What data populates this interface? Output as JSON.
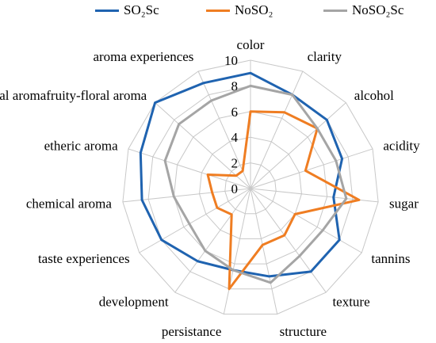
{
  "chart_data": {
    "type": "radar",
    "categories": [
      "color",
      "clarity",
      "alcohol",
      "acidity",
      "sugar",
      "tannins",
      "texture",
      "structure",
      "persistance",
      "development",
      "taste experiences",
      "chemical aroma",
      "etheric aroma",
      "floral aromafruity-floral aroma",
      "aroma  experiences"
    ],
    "rlim": [
      0,
      10
    ],
    "ticks": [
      "0",
      "2",
      "4",
      "6",
      "8",
      "10"
    ],
    "grid": true,
    "legend_position": "top",
    "series": [
      {
        "name": "SO₂Sc",
        "color": "#1f63b0",
        "values": [
          9.0,
          8.0,
          8.0,
          7.5,
          6.5,
          8.0,
          8.0,
          7.0,
          6.5,
          7.0,
          8.0,
          8.5,
          9.0,
          10.0,
          9.0
        ]
      },
      {
        "name": "NoSO₂",
        "color": "#ef7d22",
        "values": [
          6.0,
          6.5,
          7.0,
          4.5,
          8.5,
          4.0,
          4.5,
          4.5,
          8.0,
          2.5,
          3.0,
          3.0,
          3.5,
          1.5,
          1.5
        ]
      },
      {
        "name": "NoSO₂Sc",
        "color": "#a5a5a5",
        "values": [
          8.0,
          8.0,
          7.0,
          7.0,
          7.5,
          6.5,
          6.5,
          7.5,
          6.5,
          6.0,
          5.5,
          6.0,
          7.0,
          7.5,
          7.5
        ]
      }
    ]
  }
}
